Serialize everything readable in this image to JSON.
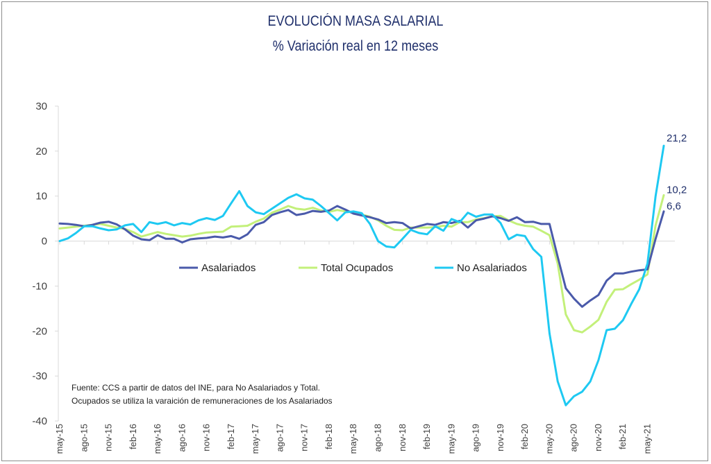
{
  "title": "EVOLUCIÓN MASA SALARIAL",
  "subtitle": "% Variación real en 12 meses",
  "note_line1": "Fuente: CCS a partir de datos del INE, para No Asalariados y Total.",
  "note_line2": "Ocupados se utiliza la varaición de remuneraciones de los Asalariados",
  "chart_data": {
    "type": "line",
    "ylim": [
      -40,
      30
    ],
    "yticks": [
      30,
      20,
      10,
      0,
      -10,
      -20,
      -30,
      -40
    ],
    "x_tick_labels": [
      "may-15",
      "ago-15",
      "nov-15",
      "feb-16",
      "may-16",
      "ago-16",
      "nov-16",
      "feb-17",
      "may-17",
      "ago-17",
      "nov-17",
      "feb-18",
      "may-18",
      "ago-18",
      "nov-18",
      "feb-19",
      "may-19",
      "ago-19",
      "nov-19",
      "feb-20",
      "may-20",
      "ago-20",
      "nov-20",
      "feb-21",
      "may-21"
    ],
    "legend_position": "inside-middle",
    "series": [
      {
        "name": "Asalariados",
        "color": "#4a5aaa",
        "end_label": "6,6",
        "values": [
          3.9,
          3.8,
          3.6,
          3.3,
          3.6,
          4.1,
          4.3,
          3.7,
          2.6,
          1.2,
          0.4,
          0.2,
          1.3,
          0.5,
          0.5,
          -0.3,
          0.4,
          0.6,
          0.7,
          1.0,
          0.8,
          1.1,
          0.5,
          1.5,
          3.6,
          4.2,
          5.8,
          6.4,
          6.9,
          5.8,
          6.1,
          6.7,
          6.5,
          6.8,
          7.8,
          7.0,
          6.1,
          5.7,
          5.3,
          4.8,
          4.0,
          4.2,
          4.0,
          2.8,
          3.3,
          3.8,
          3.6,
          4.2,
          4.0,
          4.5,
          3.0,
          4.6,
          5.0,
          5.5,
          5.1,
          4.5,
          5.3,
          4.2,
          4.3,
          3.8,
          3.8,
          -3.5,
          -10.5,
          -12.8,
          -14.6,
          -13.2,
          -12.0,
          -8.8,
          -7.2,
          -7.2,
          -6.8,
          -6.5,
          -6.3,
          0.5,
          6.6
        ]
      },
      {
        "name": "Total Ocupados",
        "color": "#c3f07a",
        "end_label": "10,2",
        "values": [
          2.8,
          3.0,
          3.2,
          3.4,
          3.6,
          3.8,
          3.4,
          3.0,
          2.7,
          2.0,
          1.0,
          1.5,
          2.0,
          1.6,
          1.3,
          1.0,
          1.2,
          1.6,
          1.9,
          2.0,
          2.1,
          3.2,
          3.3,
          3.4,
          4.3,
          5.0,
          6.3,
          7.0,
          7.8,
          7.2,
          7.0,
          7.4,
          6.8,
          6.5,
          6.9,
          6.6,
          6.3,
          5.9,
          5.4,
          4.6,
          3.4,
          2.5,
          2.4,
          3.0,
          3.0,
          3.0,
          3.1,
          3.4,
          3.2,
          4.2,
          4.2,
          4.8,
          5.1,
          5.5,
          5.6,
          4.6,
          3.8,
          3.4,
          3.2,
          2.3,
          1.3,
          -5.0,
          -16.3,
          -19.8,
          -20.3,
          -19.0,
          -17.5,
          -13.5,
          -10.8,
          -10.7,
          -9.6,
          -8.6,
          -7.4,
          3.5,
          10.2
        ]
      },
      {
        "name": "No Asalariados",
        "color": "#1ec9f2",
        "end_label": "21,2",
        "values": [
          0.0,
          0.6,
          1.8,
          3.3,
          3.3,
          2.8,
          2.4,
          2.6,
          3.5,
          3.8,
          2.0,
          4.2,
          3.8,
          4.2,
          3.5,
          4.0,
          3.7,
          4.6,
          5.1,
          4.7,
          5.6,
          8.4,
          11.1,
          7.8,
          6.4,
          6.0,
          7.2,
          8.4,
          9.6,
          10.4,
          9.5,
          9.2,
          7.8,
          6.2,
          4.6,
          6.4,
          6.6,
          6.2,
          3.8,
          0.0,
          -1.2,
          -1.4,
          0.5,
          2.5,
          1.8,
          1.5,
          3.3,
          2.3,
          4.9,
          4.2,
          6.3,
          5.4,
          5.9,
          5.9,
          4.0,
          0.4,
          1.4,
          1.1,
          -1.8,
          -3.5,
          -20.5,
          -31.2,
          -36.5,
          -34.5,
          -33.5,
          -31.2,
          -26.5,
          -19.8,
          -19.5,
          -17.6,
          -14.0,
          -10.7,
          -5.0,
          10.0,
          21.2
        ]
      }
    ]
  }
}
